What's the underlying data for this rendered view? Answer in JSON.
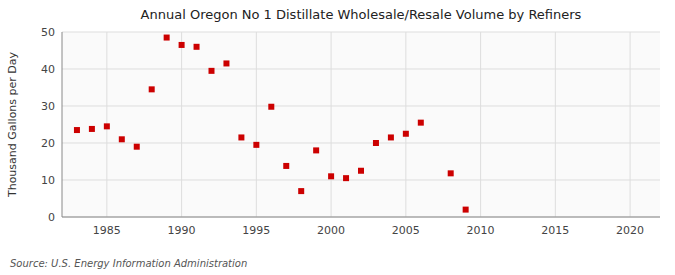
{
  "chart_data": {
    "type": "scatter",
    "title": "Annual Oregon No 1 Distillate Wholesale/Resale Volume by Refiners",
    "ylabel": "Thousand Gallons per Day",
    "annotations": [
      "Source: U.S. Energy Information Administration"
    ],
    "x": [
      1983,
      1984,
      1985,
      1986,
      1987,
      1988,
      1989,
      1990,
      1991,
      1992,
      1993,
      1994,
      1995,
      1996,
      1997,
      1998,
      1999,
      2000,
      2001,
      2002,
      2003,
      2004,
      2005,
      2006,
      2008,
      2009
    ],
    "values": [
      23.5,
      23.8,
      24.5,
      21.0,
      19.0,
      34.5,
      48.5,
      46.5,
      46.0,
      39.5,
      41.5,
      21.5,
      19.5,
      29.8,
      13.8,
      7.0,
      18.0,
      11.0,
      10.5,
      12.5,
      20.0,
      21.5,
      22.5,
      25.5,
      11.8,
      2.0
    ],
    "color": "#cc0000",
    "marker": "square",
    "xlim": [
      1982,
      2022
    ],
    "ylim": [
      0,
      50
    ],
    "xticks": [
      1985,
      1990,
      1995,
      2000,
      2005,
      2010,
      2015,
      2020
    ],
    "yticks": [
      0,
      10,
      20,
      30,
      40,
      50
    ],
    "grid": true
  }
}
